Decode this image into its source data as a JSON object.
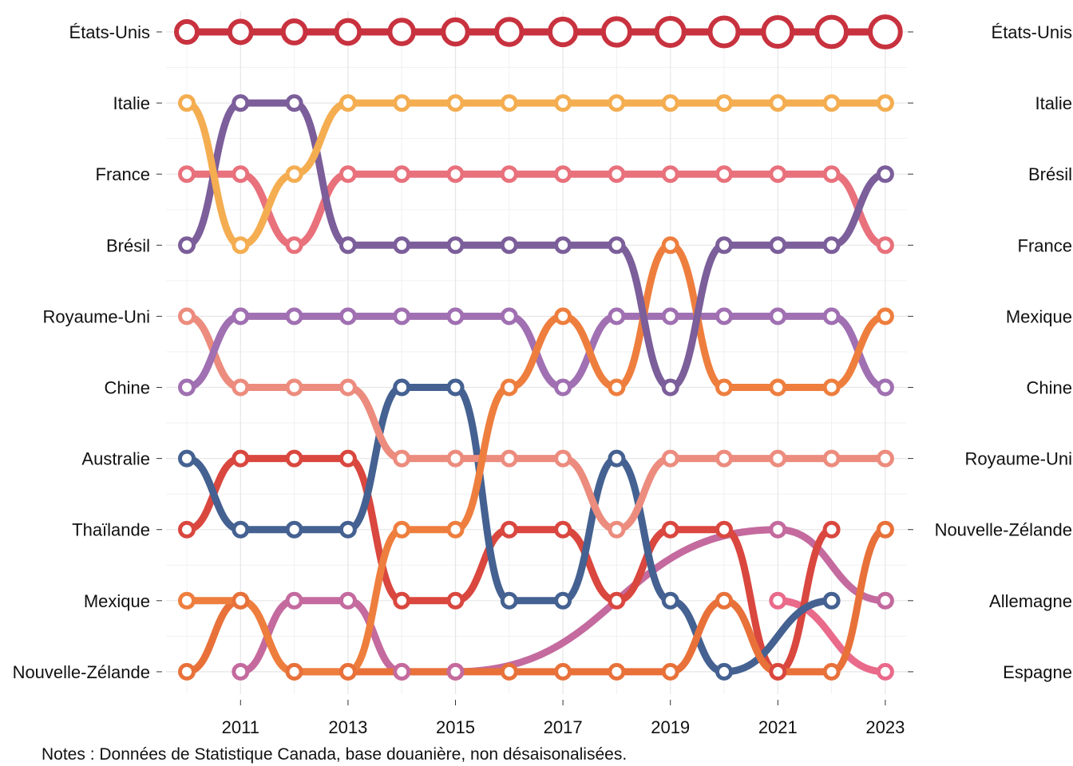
{
  "note": "Notes : Données de Statistique Canada, base douanière, non désaisonalisées.",
  "chart_data": {
    "type": "line",
    "subtype": "bump",
    "title": "",
    "xlabel": "",
    "ylabel": "",
    "x": [
      2010,
      2011,
      2012,
      2013,
      2014,
      2015,
      2016,
      2017,
      2018,
      2019,
      2020,
      2021,
      2022,
      2023
    ],
    "x_tick_labels": [
      "2011",
      "2013",
      "2015",
      "2017",
      "2019",
      "2021",
      "2023"
    ],
    "x_ticks": [
      2011,
      2013,
      2015,
      2017,
      2019,
      2021,
      2023
    ],
    "xlim": [
      2009.6,
      2023.4
    ],
    "ylim": [
      1,
      10
    ],
    "y_reversed": true,
    "y_axis_note": "rank (1 = top)",
    "left_labels": [
      "États-Unis",
      "Italie",
      "France",
      "Brésil",
      "Royaume-Uni",
      "Chine",
      "Australie",
      "Thaïlande",
      "Mexique",
      "Nouvelle-Zélande"
    ],
    "right_labels": [
      "États-Unis",
      "Italie",
      "Brésil",
      "France",
      "Mexique",
      "Chine",
      "Royaume-Uni",
      "Nouvelle-Zélande",
      "Allemagne",
      "Espagne"
    ],
    "grid": true,
    "legend": "none",
    "series": [
      {
        "name": "États-Unis",
        "color": "#c8323f",
        "values": [
          1,
          1,
          1,
          1,
          1,
          1,
          1,
          1,
          1,
          1,
          1,
          1,
          1,
          1
        ]
      },
      {
        "name": "Italie",
        "color": "#f4ad50",
        "values": [
          2,
          4,
          3,
          2,
          2,
          2,
          2,
          2,
          2,
          2,
          2,
          2,
          2,
          2
        ]
      },
      {
        "name": "Brésil",
        "color": "#7b5e9a",
        "values": [
          4,
          2,
          2,
          4,
          4,
          4,
          4,
          4,
          4,
          6,
          4,
          4,
          4,
          3
        ]
      },
      {
        "name": "France",
        "color": "#e8717c",
        "values": [
          3,
          3,
          4,
          3,
          3,
          3,
          3,
          3,
          3,
          3,
          3,
          3,
          3,
          4
        ]
      },
      {
        "name": "Mexique",
        "color": "#ee7e3e",
        "values": [
          9,
          9,
          10,
          10,
          8,
          8,
          6,
          5,
          6,
          4,
          6,
          6,
          6,
          5
        ]
      },
      {
        "name": "Chine",
        "color": "#a070b2",
        "values": [
          6,
          5,
          5,
          5,
          5,
          5,
          5,
          6,
          5,
          5,
          5,
          5,
          5,
          6
        ]
      },
      {
        "name": "Royaume-Uni",
        "color": "#ec8c7e",
        "values": [
          5,
          6,
          6,
          6,
          7,
          7,
          7,
          7,
          8,
          7,
          7,
          7,
          7,
          7
        ]
      },
      {
        "name": "Nouvelle-Zélande",
        "color": "#e8713a",
        "values": [
          10,
          9,
          10,
          10,
          10,
          10,
          10,
          10,
          10,
          10,
          9,
          10,
          10,
          8
        ]
      },
      {
        "name": "Australie",
        "color": "#446191",
        "values": [
          7,
          8,
          8,
          8,
          6,
          6,
          9,
          9,
          7,
          9,
          10,
          null,
          9,
          null
        ]
      },
      {
        "name": "Thaïlande",
        "color": "#d9473f",
        "values": [
          8,
          7,
          7,
          7,
          9,
          9,
          8,
          8,
          9,
          8,
          8,
          10,
          8,
          null
        ]
      },
      {
        "name": "Allemagne",
        "color": "#c46a9e",
        "values": [
          null,
          10,
          9,
          9,
          10,
          10,
          null,
          null,
          null,
          null,
          null,
          8,
          null,
          9
        ]
      },
      {
        "name": "Espagne",
        "color": "#e96a8a",
        "values": [
          null,
          null,
          null,
          null,
          null,
          null,
          null,
          null,
          null,
          null,
          null,
          9,
          null,
          10
        ]
      }
    ]
  }
}
